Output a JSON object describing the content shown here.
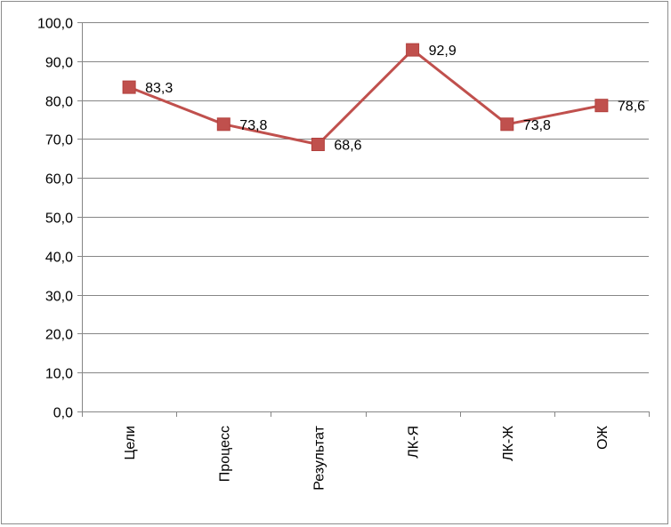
{
  "chart_data": {
    "type": "line",
    "title": "",
    "xlabel": "",
    "ylabel": "",
    "categories": [
      "Цели",
      "Процесс",
      "Результат",
      "ЛК-Я",
      "ЛК-Ж",
      "ОЖ"
    ],
    "series": [
      {
        "values": [
          83.3,
          73.8,
          68.6,
          92.9,
          73.8,
          78.6
        ],
        "labels": [
          "83,3",
          "73,8",
          "68,6",
          "92,9",
          "73,8",
          "78,6"
        ],
        "color": "#c0504d"
      }
    ],
    "ylim": [
      0,
      100
    ],
    "yticks": [
      0,
      10,
      20,
      30,
      40,
      50,
      60,
      70,
      80,
      90,
      100
    ],
    "ytick_labels": [
      "0,0",
      "10,0",
      "20,0",
      "30,0",
      "40,0",
      "50,0",
      "60,0",
      "70,0",
      "80,0",
      "90,0",
      "100,0"
    ],
    "grid": true,
    "gridline_color": "#868686",
    "marker": "square",
    "legend": "none"
  }
}
